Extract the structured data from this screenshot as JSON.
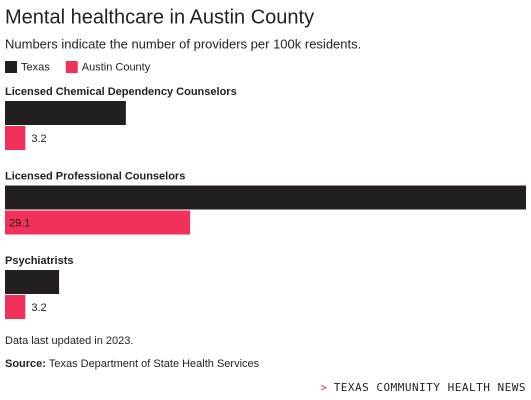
{
  "chart_data": {
    "type": "bar",
    "orientation": "horizontal",
    "title": "Mental healthcare in Austin County",
    "subtitle": "Numbers indicate the number of providers per 100k residents.",
    "categories": [
      "Licensed Chemical Dependency Counselors",
      "Licensed Professional Counselors",
      "Psychiatrists"
    ],
    "series": [
      {
        "name": "Texas",
        "color": "#231f20",
        "values": [
          19,
          81.9,
          8.5
        ]
      },
      {
        "name": "Austin County",
        "color": "#f0315a",
        "values": [
          3.2,
          29.1,
          3.2
        ]
      }
    ],
    "note": "Data last updated in 2023.",
    "source": {
      "label": "Source:",
      "text": "Texas Department of State Health Services"
    },
    "brand": {
      "marker": ">",
      "name": "TEXAS COMMUNITY HEALTH NEWS"
    }
  }
}
